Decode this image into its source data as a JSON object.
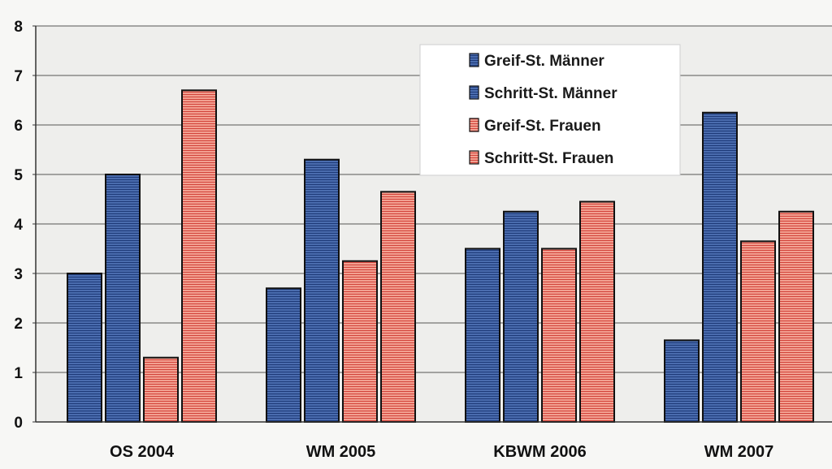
{
  "chart_data": {
    "type": "bar",
    "title": "",
    "xlabel": "",
    "ylabel": "",
    "ylim": [
      0,
      8
    ],
    "yticks": [
      "0",
      "1",
      "2",
      "3",
      "4",
      "5",
      "6",
      "7",
      "8"
    ],
    "grid": true,
    "legend_position": "top-right",
    "categories": [
      "OS 2004",
      "WM 2005",
      "KBWM 2006",
      "WM 2007"
    ],
    "series": [
      {
        "name": "Greif-St. Männer",
        "color": "#3b5c9c",
        "values": [
          3.0,
          2.7,
          3.5,
          1.65
        ]
      },
      {
        "name": "Schritt-St. Männer",
        "color": "#2c4f94",
        "values": [
          5.0,
          5.3,
          4.25,
          6.25
        ]
      },
      {
        "name": "Greif-St. Frauen",
        "color": "#e0705a",
        "values": [
          1.3,
          3.25,
          3.5,
          3.65
        ]
      },
      {
        "name": "Schritt-St. Frauen",
        "color": "#e45a52",
        "values": [
          6.7,
          4.65,
          4.45,
          4.25
        ]
      }
    ]
  }
}
